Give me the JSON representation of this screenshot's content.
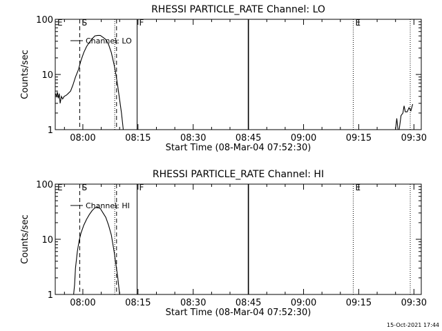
{
  "chart_data": [
    {
      "type": "line",
      "title": "RHESSI PARTICLE_RATE Channel: LO",
      "xlabel": "Start Time (08-Mar-04 07:52:30)",
      "ylabel": "Counts/sec",
      "yscale": "log",
      "xlim": [
        "07:52:30",
        "09:32:00"
      ],
      "ylim": [
        1,
        100
      ],
      "x_ticks": [
        "08:00",
        "08:15",
        "08:30",
        "08:45",
        "09:00",
        "09:15",
        "09:30"
      ],
      "y_ticks": [
        "1",
        "10",
        "100"
      ],
      "series": [
        {
          "name": "Channel: LO",
          "segments": [
            [
              {
                "x": "07:52:35",
                "y": 4.5
              },
              {
                "x": "07:52:50",
                "y": 4.0
              },
              {
                "x": "07:53:05",
                "y": 4.8
              },
              {
                "x": "07:53:20",
                "y": 3.7
              },
              {
                "x": "07:53:35",
                "y": 4.5
              },
              {
                "x": "07:53:50",
                "y": 3.0
              },
              {
                "x": "07:54:10",
                "y": 4.0
              },
              {
                "x": "07:54:30",
                "y": 3.6
              },
              {
                "x": "07:54:55",
                "y": 4.0
              },
              {
                "x": "07:55:30",
                "y": 4.2
              },
              {
                "x": "07:56:00",
                "y": 4.5
              },
              {
                "x": "07:56:40",
                "y": 5.0
              },
              {
                "x": "07:57:20",
                "y": 6.5
              },
              {
                "x": "07:58:00",
                "y": 9.0
              },
              {
                "x": "07:58:45",
                "y": 12
              },
              {
                "x": "07:59:30",
                "y": 18
              },
              {
                "x": "08:00:15",
                "y": 25
              },
              {
                "x": "08:01:00",
                "y": 32
              },
              {
                "x": "08:01:45",
                "y": 38
              },
              {
                "x": "08:02:30",
                "y": 44
              },
              {
                "x": "08:03:15",
                "y": 50
              },
              {
                "x": "08:04:00",
                "y": 51
              },
              {
                "x": "08:04:45",
                "y": 51
              },
              {
                "x": "08:05:30",
                "y": 47
              },
              {
                "x": "08:06:15",
                "y": 43
              },
              {
                "x": "08:07:00",
                "y": 35
              },
              {
                "x": "08:07:45",
                "y": 25
              },
              {
                "x": "08:08:30",
                "y": 15
              },
              {
                "x": "08:09:00",
                "y": 10
              },
              {
                "x": "08:09:30",
                "y": 6
              },
              {
                "x": "08:10:00",
                "y": 3.5
              },
              {
                "x": "08:10:30",
                "y": 2.0
              },
              {
                "x": "08:11:00",
                "y": 1.0
              }
            ],
            [
              {
                "x": "09:25:00",
                "y": 1.0
              },
              {
                "x": "09:25:20",
                "y": 1.6
              },
              {
                "x": "09:25:40",
                "y": 1.0
              }
            ],
            [
              {
                "x": "09:26:00",
                "y": 1.0
              },
              {
                "x": "09:26:30",
                "y": 1.8
              },
              {
                "x": "09:27:00",
                "y": 2.0
              },
              {
                "x": "09:27:20",
                "y": 2.7
              },
              {
                "x": "09:27:40",
                "y": 2.1
              },
              {
                "x": "09:28:10",
                "y": 2.1
              },
              {
                "x": "09:28:40",
                "y": 2.5
              },
              {
                "x": "09:29:10",
                "y": 2.2
              },
              {
                "x": "09:29:40",
                "y": 2.9
              }
            ]
          ]
        }
      ],
      "markers": [
        {
          "label": "E",
          "x": "07:52:30",
          "style": "none"
        },
        {
          "label": "S",
          "x": "07:59:10",
          "style": "dashed"
        },
        {
          "label": "",
          "x": "08:09:10",
          "style": "dashed"
        },
        {
          "label": "",
          "x": "08:08:40",
          "style": "dotted"
        },
        {
          "label": "F",
          "x": "08:14:45",
          "style": "solid"
        },
        {
          "label": "",
          "x": "08:45:00",
          "style": "solid-bold"
        },
        {
          "label": "E",
          "x": "09:13:30",
          "style": "dotted"
        },
        {
          "label": "",
          "x": "09:29:00",
          "style": "dotted"
        }
      ],
      "legend": "top-left",
      "grid": false
    },
    {
      "type": "line",
      "title": "RHESSI PARTICLE_RATE Channel: HI",
      "xlabel": "Start Time (08-Mar-04 07:52:30)",
      "ylabel": "Counts/sec",
      "yscale": "log",
      "xlim": [
        "07:52:30",
        "09:32:00"
      ],
      "ylim": [
        1,
        100
      ],
      "x_ticks": [
        "08:00",
        "08:15",
        "08:30",
        "08:45",
        "09:00",
        "09:15",
        "09:30"
      ],
      "y_ticks": [
        "1",
        "10",
        "100"
      ],
      "series": [
        {
          "name": "Channel: HI",
          "segments": [
            [
              {
                "x": "07:57:30",
                "y": 1.0
              },
              {
                "x": "07:57:45",
                "y": 1.5
              },
              {
                "x": "07:58:00",
                "y": 3.0
              },
              {
                "x": "07:58:30",
                "y": 6.0
              },
              {
                "x": "07:59:00",
                "y": 9.5
              },
              {
                "x": "07:59:30",
                "y": 13
              },
              {
                "x": "08:00:15",
                "y": 18
              },
              {
                "x": "08:01:00",
                "y": 23
              },
              {
                "x": "08:01:45",
                "y": 28
              },
              {
                "x": "08:02:30",
                "y": 33
              },
              {
                "x": "08:03:15",
                "y": 37
              },
              {
                "x": "08:04:00",
                "y": 38
              },
              {
                "x": "08:04:45",
                "y": 36
              },
              {
                "x": "08:05:30",
                "y": 30
              },
              {
                "x": "08:06:15",
                "y": 25
              },
              {
                "x": "08:07:00",
                "y": 18
              },
              {
                "x": "08:07:45",
                "y": 12
              },
              {
                "x": "08:08:30",
                "y": 6
              },
              {
                "x": "08:09:00",
                "y": 3.5
              },
              {
                "x": "08:09:30",
                "y": 2.0
              },
              {
                "x": "08:10:00",
                "y": 1.0
              }
            ]
          ]
        }
      ],
      "markers": [
        {
          "label": "E",
          "x": "07:52:30",
          "style": "none"
        },
        {
          "label": "S",
          "x": "07:59:10",
          "style": "dashed"
        },
        {
          "label": "",
          "x": "08:09:10",
          "style": "dashed"
        },
        {
          "label": "",
          "x": "08:08:40",
          "style": "dotted"
        },
        {
          "label": "F",
          "x": "08:14:45",
          "style": "solid"
        },
        {
          "label": "",
          "x": "08:45:00",
          "style": "solid-bold"
        },
        {
          "label": "E",
          "x": "09:13:30",
          "style": "dotted"
        },
        {
          "label": "",
          "x": "09:29:00",
          "style": "dotted"
        }
      ],
      "legend": "top-left",
      "grid": false
    }
  ],
  "footer": {
    "timestamp": "15-Oct-2021 17:44"
  }
}
